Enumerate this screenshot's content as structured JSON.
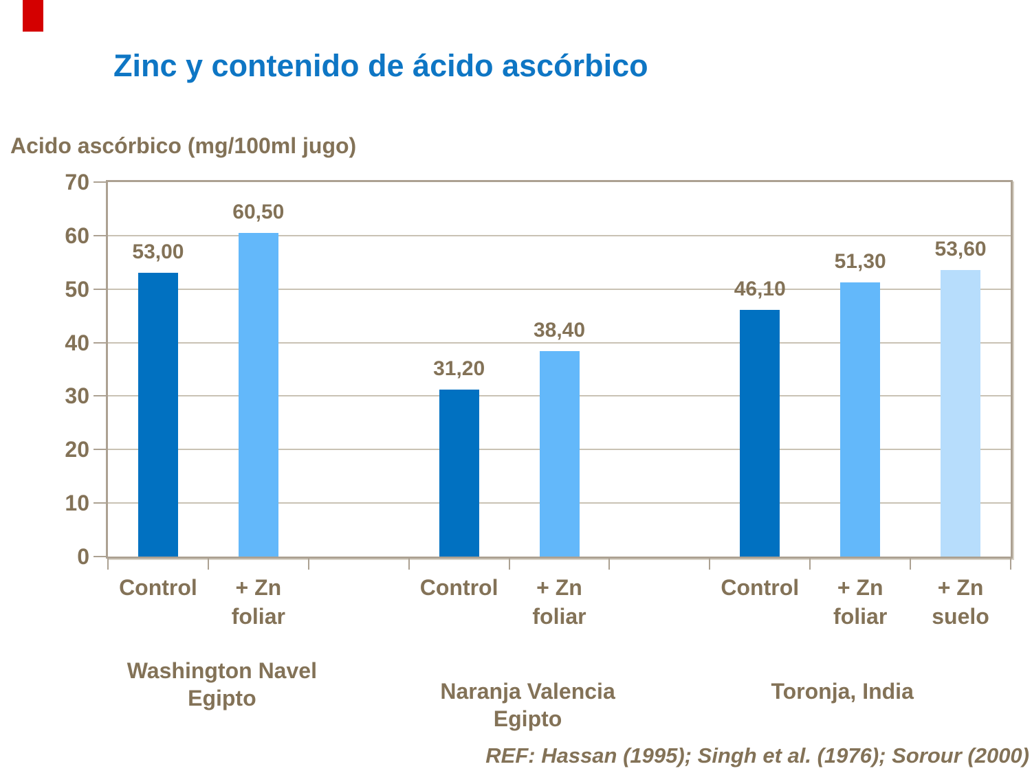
{
  "slide": {
    "accent_color": "#D40000",
    "title": "Zinc y contenido de ácido ascórbico",
    "reference": "REF: Hassan (1995); Singh et al. (1976); Sorour (2000)"
  },
  "chart_data": {
    "type": "bar",
    "title": "Zinc y contenido de ácido ascórbico",
    "ylabel": "Acido ascórbico (mg/100ml jugo)",
    "xlabel": "",
    "ylim": [
      0,
      70
    ],
    "ytick_step": 10,
    "ytick_labels": [
      "0",
      "10",
      "20",
      "30",
      "40",
      "50",
      "60",
      "70"
    ],
    "grid": true,
    "legend": "none",
    "num_slots": 9,
    "colors": {
      "control": "#0171C1",
      "zn_foliar": "#63B8FA",
      "zn_suelo": "#B7DDFC"
    },
    "groups": [
      {
        "label_lines": [
          "Washington Navel",
          "Egipto"
        ],
        "bars": [
          {
            "slot": 0,
            "category_lines": [
              "Control"
            ],
            "value": 53.0,
            "value_label": "53,00",
            "color_key": "control"
          },
          {
            "slot": 1,
            "category_lines": [
              "+ Zn",
              "foliar"
            ],
            "value": 60.5,
            "value_label": "60,50",
            "color_key": "zn_foliar"
          }
        ]
      },
      {
        "label_lines": [
          "Naranja Valencia",
          "Egipto"
        ],
        "bars": [
          {
            "slot": 3,
            "category_lines": [
              "Control"
            ],
            "value": 31.2,
            "value_label": "31,20",
            "color_key": "control"
          },
          {
            "slot": 4,
            "category_lines": [
              "+ Zn",
              "foliar"
            ],
            "value": 38.4,
            "value_label": "38,40",
            "color_key": "zn_foliar"
          }
        ]
      },
      {
        "label_lines": [
          "Toronja, India"
        ],
        "bars": [
          {
            "slot": 6,
            "category_lines": [
              "Control"
            ],
            "value": 46.1,
            "value_label": "46,10",
            "color_key": "control"
          },
          {
            "slot": 7,
            "category_lines": [
              "+ Zn",
              "foliar"
            ],
            "value": 51.3,
            "value_label": "51,30",
            "color_key": "zn_foliar"
          },
          {
            "slot": 8,
            "category_lines": [
              "+ Zn",
              "suelo"
            ],
            "value": 53.6,
            "value_label": "53,60",
            "color_key": "zn_suelo"
          }
        ]
      }
    ]
  }
}
